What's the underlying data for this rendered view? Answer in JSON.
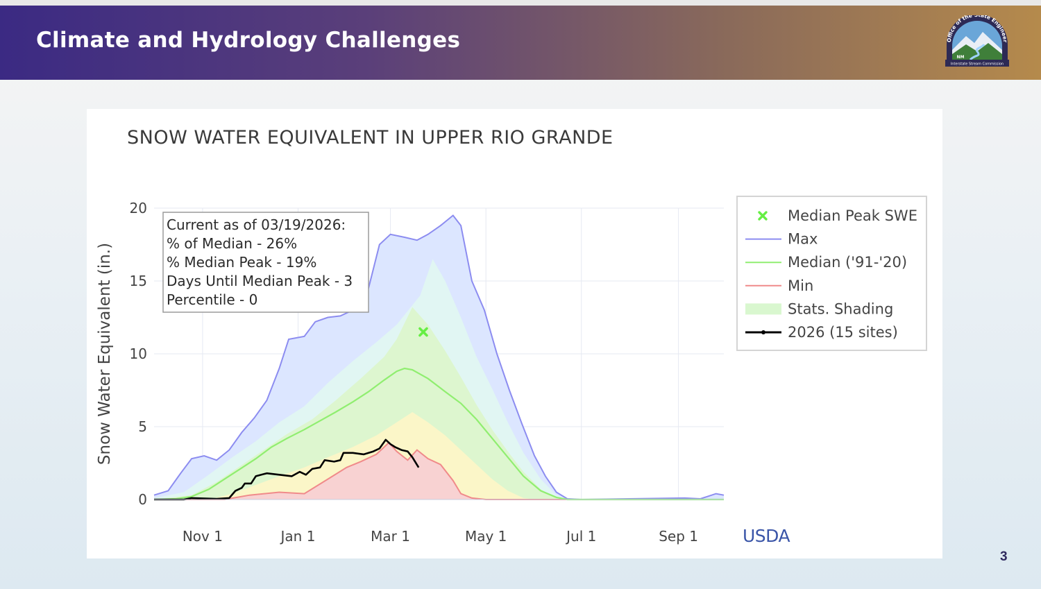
{
  "slide": {
    "title": "Climate and Hydrology Challenges",
    "page_number": "3",
    "logo_text_top": "Office of the State Engineer",
    "logo_text_bottom": "Interstate Stream Commission",
    "logo_badge": "NM",
    "colors": {
      "banner_left": "#3b2a83",
      "banner_right": "#b58a4c"
    }
  },
  "chart_data": {
    "type": "area",
    "title": "SNOW WATER EQUIVALENT IN UPPER RIO GRANDE",
    "ylabel": "Snow Water Equivalent (in.)",
    "xlabel": "",
    "ylim": [
      0,
      20
    ],
    "yticks": [
      0,
      5,
      10,
      15,
      20
    ],
    "x_range": [
      "2025-10-01",
      "2026-09-30"
    ],
    "xticks": [
      {
        "date": "2025-11-01",
        "label": "Nov  1"
      },
      {
        "date": "2026-01-01",
        "label": "Jan  1"
      },
      {
        "date": "2026-03-01",
        "label": "Mar  1"
      },
      {
        "date": "2026-05-01",
        "label": "May  1"
      },
      {
        "date": "2026-07-01",
        "label": "Jul  1"
      },
      {
        "date": "2026-09-01",
        "label": "Sep  1"
      }
    ],
    "grid": true,
    "legend_position": "right",
    "legend": [
      {
        "key": "median_peak",
        "label": "Median Peak SWE",
        "color": "#66ee44"
      },
      {
        "key": "max",
        "label": "Max",
        "color": "#8c8cf0"
      },
      {
        "key": "median",
        "label": "Median ('91-'20)",
        "color": "#90ee70"
      },
      {
        "key": "min",
        "label": "Min",
        "color": "#f08a8a"
      },
      {
        "key": "shading",
        "label": "Stats. Shading",
        "color": "#d9f7cf"
      },
      {
        "key": "current",
        "label": "2026 (15 sites)",
        "color": "#000000"
      }
    ],
    "annotation_lines": [
      "Current as of 03/19/2026:",
      "% of Median - 26%",
      "% Median Peak - 19%",
      "Days Until Median Peak - 3",
      "Percentile - 0"
    ],
    "source_label": "USDA",
    "median_peak": {
      "date": "2026-03-22",
      "value": 11.5
    },
    "series": {
      "max": [
        [
          "2025-10-01",
          0.3
        ],
        [
          "2025-10-10",
          0.6
        ],
        [
          "2025-10-18",
          1.8
        ],
        [
          "2025-10-25",
          2.8
        ],
        [
          "2025-11-02",
          3.0
        ],
        [
          "2025-11-10",
          2.7
        ],
        [
          "2025-11-18",
          3.4
        ],
        [
          "2025-11-26",
          4.6
        ],
        [
          "2025-12-04",
          5.6
        ],
        [
          "2025-12-12",
          6.8
        ],
        [
          "2025-12-20",
          9.0
        ],
        [
          "2025-12-26",
          11.0
        ],
        [
          "2026-01-05",
          11.2
        ],
        [
          "2026-01-12",
          12.2
        ],
        [
          "2026-01-20",
          12.5
        ],
        [
          "2026-01-28",
          12.6
        ],
        [
          "2026-02-05",
          13.0
        ],
        [
          "2026-02-15",
          14.5
        ],
        [
          "2026-02-22",
          17.5
        ],
        [
          "2026-03-01",
          18.2
        ],
        [
          "2026-03-10",
          18.0
        ],
        [
          "2026-03-18",
          17.8
        ],
        [
          "2026-03-25",
          18.2
        ],
        [
          "2026-04-02",
          18.8
        ],
        [
          "2026-04-10",
          19.5
        ],
        [
          "2026-04-15",
          18.8
        ],
        [
          "2026-04-22",
          15.0
        ],
        [
          "2026-04-30",
          13.0
        ],
        [
          "2026-05-08",
          10.0
        ],
        [
          "2026-05-16",
          7.5
        ],
        [
          "2026-05-24",
          5.2
        ],
        [
          "2026-06-01",
          3.0
        ],
        [
          "2026-06-08",
          1.6
        ],
        [
          "2026-06-15",
          0.5
        ],
        [
          "2026-06-22",
          0.05
        ],
        [
          "2026-07-01",
          0.0
        ],
        [
          "2026-09-05",
          0.1
        ],
        [
          "2026-09-15",
          0.05
        ],
        [
          "2026-09-25",
          0.4
        ],
        [
          "2026-09-30",
          0.3
        ]
      ],
      "median": [
        [
          "2025-10-01",
          0.0
        ],
        [
          "2025-10-15",
          0.05
        ],
        [
          "2025-10-25",
          0.2
        ],
        [
          "2025-11-05",
          0.7
        ],
        [
          "2025-11-15",
          1.4
        ],
        [
          "2025-11-25",
          2.1
        ],
        [
          "2025-12-05",
          2.8
        ],
        [
          "2025-12-15",
          3.6
        ],
        [
          "2025-12-25",
          4.2
        ],
        [
          "2026-01-05",
          4.8
        ],
        [
          "2026-01-15",
          5.4
        ],
        [
          "2026-01-25",
          6.0
        ],
        [
          "2026-02-05",
          6.7
        ],
        [
          "2026-02-15",
          7.4
        ],
        [
          "2026-02-25",
          8.2
        ],
        [
          "2026-03-05",
          8.8
        ],
        [
          "2026-03-10",
          9.0
        ],
        [
          "2026-03-15",
          8.9
        ],
        [
          "2026-03-25",
          8.3
        ],
        [
          "2026-04-05",
          7.4
        ],
        [
          "2026-04-15",
          6.6
        ],
        [
          "2026-04-25",
          5.5
        ],
        [
          "2026-05-05",
          4.2
        ],
        [
          "2026-05-15",
          2.9
        ],
        [
          "2026-05-25",
          1.6
        ],
        [
          "2026-06-05",
          0.6
        ],
        [
          "2026-06-15",
          0.15
        ],
        [
          "2026-06-22",
          0.0
        ],
        [
          "2026-09-30",
          0.0
        ]
      ],
      "min": [
        [
          "2025-10-01",
          0.0
        ],
        [
          "2025-11-15",
          0.0
        ],
        [
          "2025-12-01",
          0.3
        ],
        [
          "2025-12-20",
          0.5
        ],
        [
          "2026-01-05",
          0.4
        ],
        [
          "2026-01-20",
          1.4
        ],
        [
          "2026-02-01",
          2.2
        ],
        [
          "2026-02-10",
          2.6
        ],
        [
          "2026-02-20",
          3.1
        ],
        [
          "2026-02-28",
          3.9
        ],
        [
          "2026-03-05",
          3.3
        ],
        [
          "2026-03-12",
          2.7
        ],
        [
          "2026-03-18",
          3.4
        ],
        [
          "2026-03-25",
          2.8
        ],
        [
          "2026-04-02",
          2.4
        ],
        [
          "2026-04-10",
          1.3
        ],
        [
          "2026-04-15",
          0.4
        ],
        [
          "2026-04-22",
          0.1
        ],
        [
          "2026-05-01",
          0.0
        ],
        [
          "2026-09-30",
          0.0
        ]
      ],
      "band_outer": [
        [
          "2025-10-01",
          0.1
        ],
        [
          "2025-10-20",
          0.5
        ],
        [
          "2025-11-05",
          1.7
        ],
        [
          "2025-11-20",
          2.9
        ],
        [
          "2025-12-05",
          4.0
        ],
        [
          "2025-12-20",
          5.3
        ],
        [
          "2026-01-05",
          6.4
        ],
        [
          "2026-01-20",
          8.0
        ],
        [
          "2026-02-05",
          9.5
        ],
        [
          "2026-02-20",
          10.8
        ],
        [
          "2026-03-05",
          12.0
        ],
        [
          "2026-03-20",
          14.0
        ],
        [
          "2026-03-28",
          16.5
        ],
        [
          "2026-04-05",
          15.0
        ],
        [
          "2026-04-15",
          12.5
        ],
        [
          "2026-04-25",
          9.8
        ],
        [
          "2026-05-05",
          7.6
        ],
        [
          "2026-05-15",
          5.3
        ],
        [
          "2026-05-25",
          3.2
        ],
        [
          "2026-06-05",
          1.4
        ],
        [
          "2026-06-15",
          0.3
        ],
        [
          "2026-06-25",
          0.0
        ],
        [
          "2026-09-30",
          0.0
        ]
      ],
      "band_inner_upper": [
        [
          "2025-10-01",
          0.0
        ],
        [
          "2025-10-25",
          0.3
        ],
        [
          "2025-11-10",
          1.2
        ],
        [
          "2025-11-25",
          2.3
        ],
        [
          "2025-12-10",
          3.4
        ],
        [
          "2025-12-25",
          4.5
        ],
        [
          "2026-01-10",
          5.5
        ],
        [
          "2026-01-25",
          6.8
        ],
        [
          "2026-02-10",
          8.3
        ],
        [
          "2026-02-25",
          9.8
        ],
        [
          "2026-03-05",
          11.0
        ],
        [
          "2026-03-15",
          13.2
        ],
        [
          "2026-03-25",
          12.0
        ],
        [
          "2026-04-05",
          10.2
        ],
        [
          "2026-04-15",
          8.4
        ],
        [
          "2026-04-25",
          6.5
        ],
        [
          "2026-05-05",
          4.8
        ],
        [
          "2026-05-15",
          3.3
        ],
        [
          "2026-05-25",
          1.9
        ],
        [
          "2026-06-05",
          0.7
        ],
        [
          "2026-06-15",
          0.1
        ],
        [
          "2026-06-20",
          0.0
        ],
        [
          "2026-09-30",
          0.0
        ]
      ],
      "band_inner_lower": [
        [
          "2025-10-01",
          0.0
        ],
        [
          "2025-11-05",
          0.0
        ],
        [
          "2025-11-20",
          0.4
        ],
        [
          "2025-12-05",
          1.0
        ],
        [
          "2025-12-20",
          1.6
        ],
        [
          "2026-01-05",
          2.2
        ],
        [
          "2026-01-20",
          2.9
        ],
        [
          "2026-02-05",
          3.6
        ],
        [
          "2026-02-20",
          4.4
        ],
        [
          "2026-03-05",
          5.3
        ],
        [
          "2026-03-15",
          6.0
        ],
        [
          "2026-03-25",
          5.3
        ],
        [
          "2026-04-05",
          4.4
        ],
        [
          "2026-04-15",
          3.4
        ],
        [
          "2026-04-25",
          2.4
        ],
        [
          "2026-05-05",
          1.4
        ],
        [
          "2026-05-15",
          0.6
        ],
        [
          "2026-05-25",
          0.1
        ],
        [
          "2026-06-01",
          0.0
        ],
        [
          "2026-09-30",
          0.0
        ]
      ],
      "current": [
        [
          "2025-10-01",
          0.0
        ],
        [
          "2025-10-20",
          0.0
        ],
        [
          "2025-10-25",
          0.1
        ],
        [
          "2025-11-10",
          0.05
        ],
        [
          "2025-11-18",
          0.1
        ],
        [
          "2025-11-22",
          0.6
        ],
        [
          "2025-11-26",
          0.8
        ],
        [
          "2025-11-28",
          1.1
        ],
        [
          "2025-12-02",
          1.1
        ],
        [
          "2025-12-05",
          1.6
        ],
        [
          "2025-12-12",
          1.8
        ],
        [
          "2025-12-20",
          1.7
        ],
        [
          "2025-12-28",
          1.6
        ],
        [
          "2026-01-02",
          1.9
        ],
        [
          "2026-01-06",
          1.7
        ],
        [
          "2026-01-10",
          2.1
        ],
        [
          "2026-01-15",
          2.2
        ],
        [
          "2026-01-18",
          2.7
        ],
        [
          "2026-01-24",
          2.6
        ],
        [
          "2026-01-28",
          2.7
        ],
        [
          "2026-01-30",
          3.2
        ],
        [
          "2026-02-05",
          3.2
        ],
        [
          "2026-02-12",
          3.1
        ],
        [
          "2026-02-18",
          3.3
        ],
        [
          "2026-02-22",
          3.5
        ],
        [
          "2026-02-26",
          4.1
        ],
        [
          "2026-03-01",
          3.8
        ],
        [
          "2026-03-04",
          3.6
        ],
        [
          "2026-03-08",
          3.4
        ],
        [
          "2026-03-12",
          3.3
        ],
        [
          "2026-03-15",
          2.9
        ],
        [
          "2026-03-19",
          2.2
        ]
      ]
    }
  }
}
